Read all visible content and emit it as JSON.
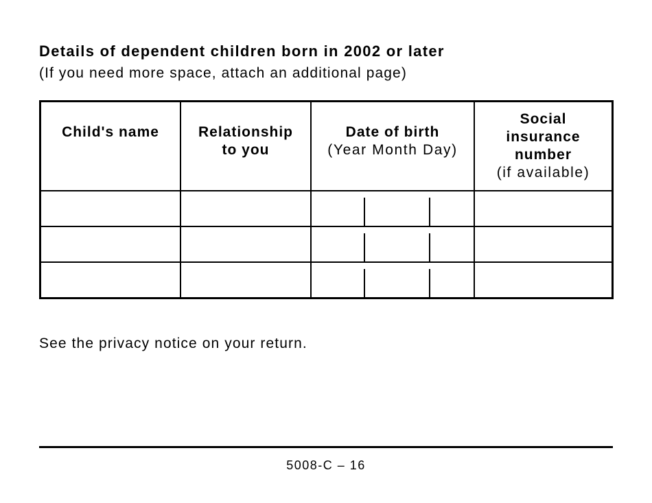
{
  "document": {
    "title": "Details of dependent children born in 2002 or later",
    "subtitle": "(If you need more space, attach an additional page)",
    "privacy_note": "See the privacy notice on your return.",
    "page_number": "5008-C – 16"
  },
  "table": {
    "headers": [
      {
        "lines": [
          "Child's name"
        ],
        "note": ""
      },
      {
        "lines": [
          "Relationship",
          "to you"
        ],
        "note": ""
      },
      {
        "lines": [
          "Date of birth"
        ],
        "note": "(Year Month Day)"
      },
      {
        "lines": [
          "Social",
          "insurance",
          "number"
        ],
        "note": "(if available)"
      }
    ],
    "rows": [
      {
        "child_name": "",
        "relationship": "",
        "dob_year": "",
        "dob_month": "",
        "dob_day": "",
        "sin": ""
      },
      {
        "child_name": "",
        "relationship": "",
        "dob_year": "",
        "dob_month": "",
        "dob_day": "",
        "sin": ""
      },
      {
        "child_name": "",
        "relationship": "",
        "dob_year": "",
        "dob_month": "",
        "dob_day": "",
        "sin": ""
      }
    ]
  },
  "colors": {
    "ink": "#000000",
    "background": "#ffffff"
  }
}
